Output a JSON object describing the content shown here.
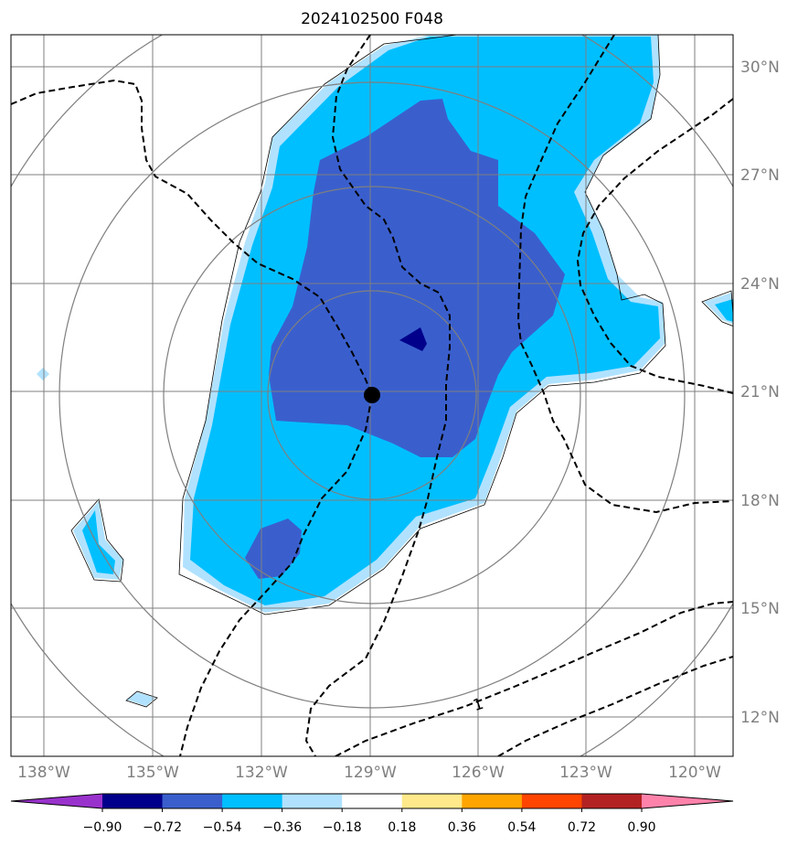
{
  "title": "2024102500 F048",
  "latitude_labels": [
    "30°N",
    "27°N",
    "24°N",
    "21°N",
    "18°N",
    "15°N",
    "12°N"
  ],
  "longitude_labels": [
    "138°W",
    "135°W",
    "132°W",
    "129°W",
    "126°W",
    "123°W",
    "120°W"
  ],
  "contour_label": "1",
  "colorbar": {
    "tick_labels": [
      "−0.90",
      "−0.72",
      "−0.54",
      "−0.36",
      "−0.18",
      "0.18",
      "0.36",
      "0.54",
      "0.72",
      "0.90"
    ],
    "colors": [
      "#9932cc",
      "#00008b",
      "#3a5fcd",
      "#00bfff",
      "#b0e2ff",
      "#ffffff",
      "#ffe98a",
      "#ffa500",
      "#ff4500",
      "#b22222",
      "#ff82ab"
    ]
  },
  "map_colors": {
    "lightblue": "#b0e2ff",
    "skyblue": "#00bfff",
    "royalblue": "#3a5fcd",
    "navy": "#00008b",
    "grid": "#7f7f7f",
    "storm_center": "#000000"
  }
}
